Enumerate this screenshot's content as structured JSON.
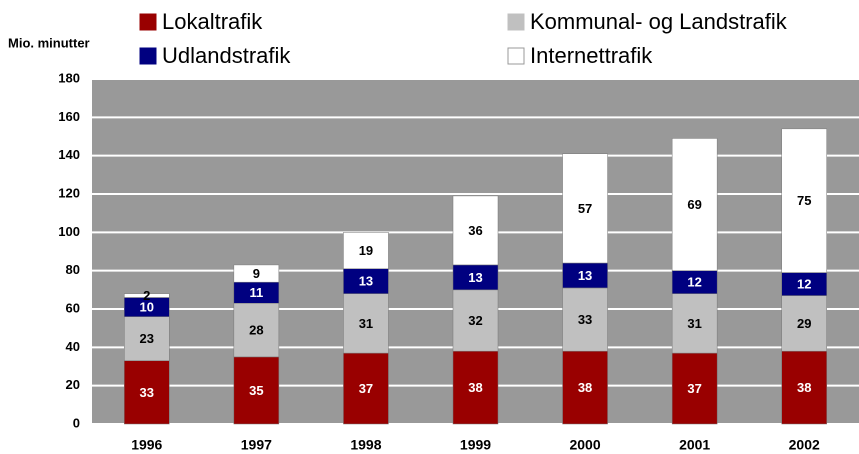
{
  "chart_data": {
    "type": "stacked_bar",
    "y_label": "Mio. minutter",
    "categories": [
      "1996",
      "1997",
      "1998",
      "1999",
      "2000",
      "2001",
      "2002"
    ],
    "series": [
      {
        "name": "Lokaltrafik",
        "color": "#990000",
        "label_color": "#ffffff",
        "values": [
          33,
          35,
          37,
          38,
          38,
          37,
          38
        ]
      },
      {
        "name": "Kommunal- og Landstrafik",
        "color": "#c0c0c0",
        "label_color": "#000000",
        "values": [
          23,
          28,
          31,
          32,
          33,
          31,
          29
        ]
      },
      {
        "name": "Udlandstrafik",
        "color": "#000080",
        "label_color": "#ffffff",
        "values": [
          10,
          11,
          13,
          13,
          13,
          12,
          12
        ]
      },
      {
        "name": "Internettrafik",
        "color": "#ffffff",
        "label_color": "#000000",
        "values": [
          2,
          9,
          19,
          36,
          57,
          69,
          75
        ]
      }
    ],
    "ylim": [
      0,
      180
    ],
    "yticks": [
      0,
      20,
      40,
      60,
      80,
      100,
      120,
      140,
      160,
      180
    ],
    "grid": true,
    "plot_background": "#999999"
  }
}
